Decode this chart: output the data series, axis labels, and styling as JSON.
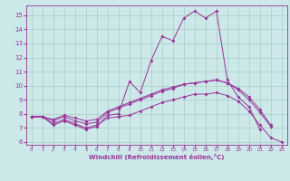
{
  "bg_color": "#cce8e8",
  "grid_color": "#aacccc",
  "line_color": "#993399",
  "marker": "D",
  "markersize": 2.0,
  "xlabel": "Windchill (Refroidissement éolien,°C)",
  "xlim": [
    -0.5,
    23.5
  ],
  "ylim": [
    5.8,
    15.7
  ],
  "yticks": [
    6,
    7,
    8,
    9,
    10,
    11,
    12,
    13,
    14,
    15
  ],
  "xticks": [
    0,
    1,
    2,
    3,
    4,
    5,
    6,
    7,
    8,
    9,
    10,
    11,
    12,
    13,
    14,
    15,
    16,
    17,
    18,
    19,
    20,
    21,
    22,
    23
  ],
  "series": [
    {
      "x": [
        0,
        1,
        2,
        3,
        4,
        5,
        6,
        7,
        8,
        9,
        10,
        11,
        12,
        13,
        14,
        15,
        16,
        17,
        18,
        19,
        20,
        21
      ],
      "y": [
        7.8,
        7.8,
        7.2,
        7.5,
        7.2,
        6.9,
        7.1,
        7.9,
        8.0,
        10.3,
        9.5,
        11.8,
        13.5,
        13.2,
        14.8,
        15.3,
        14.8,
        15.3,
        10.4,
        9.2,
        8.5,
        6.9
      ]
    },
    {
      "x": [
        0,
        1,
        2,
        3,
        4,
        5,
        6,
        7,
        8,
        9,
        10,
        11,
        12,
        13,
        14,
        15,
        16,
        17,
        18,
        19,
        20,
        21,
        22
      ],
      "y": [
        7.8,
        7.8,
        7.5,
        7.8,
        7.5,
        7.3,
        7.4,
        8.1,
        8.4,
        8.7,
        9.0,
        9.3,
        9.6,
        9.8,
        10.1,
        10.2,
        10.3,
        10.4,
        10.2,
        9.8,
        9.2,
        8.3,
        7.2
      ]
    },
    {
      "x": [
        0,
        1,
        2,
        3,
        4,
        5,
        6,
        7,
        8,
        9,
        10,
        11,
        12,
        13,
        14,
        15,
        16,
        17,
        18,
        19,
        20,
        21,
        22
      ],
      "y": [
        7.8,
        7.8,
        7.6,
        7.9,
        7.7,
        7.5,
        7.6,
        8.2,
        8.5,
        8.8,
        9.1,
        9.4,
        9.7,
        9.9,
        10.1,
        10.2,
        10.3,
        10.4,
        10.2,
        9.7,
        9.0,
        8.1,
        7.1
      ]
    },
    {
      "x": [
        0,
        1,
        2,
        3,
        4,
        5,
        6,
        7,
        8,
        9,
        10,
        11,
        12,
        13,
        14,
        15,
        16,
        17,
        18,
        19,
        20,
        21,
        22,
        23
      ],
      "y": [
        7.8,
        7.8,
        7.3,
        7.6,
        7.3,
        7.0,
        7.2,
        7.7,
        7.8,
        7.9,
        8.2,
        8.5,
        8.8,
        9.0,
        9.2,
        9.4,
        9.4,
        9.5,
        9.3,
        8.9,
        8.2,
        7.2,
        6.3,
        6.0
      ]
    }
  ]
}
